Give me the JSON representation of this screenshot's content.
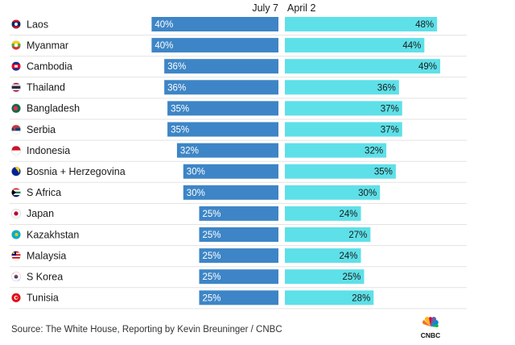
{
  "chart_data": {
    "type": "bar",
    "series": [
      {
        "name": "July 7",
        "color": "#3d85c6"
      },
      {
        "name": "April 2",
        "color": "#5ee0e8"
      }
    ],
    "rows": [
      {
        "country": "Laos",
        "flag": "laos-flag-icon",
        "july7": 40,
        "april2": 48
      },
      {
        "country": "Myanmar",
        "flag": "myanmar-flag-icon",
        "july7": 40,
        "april2": 44
      },
      {
        "country": "Cambodia",
        "flag": "cambodia-flag-icon",
        "july7": 36,
        "april2": 49
      },
      {
        "country": "Thailand",
        "flag": "thailand-flag-icon",
        "july7": 36,
        "april2": 36
      },
      {
        "country": "Bangladesh",
        "flag": "bangladesh-flag-icon",
        "july7": 35,
        "april2": 37
      },
      {
        "country": "Serbia",
        "flag": "serbia-flag-icon",
        "july7": 35,
        "april2": 37
      },
      {
        "country": "Indonesia",
        "flag": "indonesia-flag-icon",
        "july7": 32,
        "april2": 32
      },
      {
        "country": "Bosnia + Herzegovina",
        "flag": "bosnia-flag-icon",
        "july7": 30,
        "april2": 35
      },
      {
        "country": "S Africa",
        "flag": "south-africa-flag-icon",
        "july7": 30,
        "april2": 30
      },
      {
        "country": "Japan",
        "flag": "japan-flag-icon",
        "july7": 25,
        "april2": 24
      },
      {
        "country": "Kazakhstan",
        "flag": "kazakhstan-flag-icon",
        "july7": 25,
        "april2": 27
      },
      {
        "country": "Malaysia",
        "flag": "malaysia-flag-icon",
        "july7": 25,
        "april2": 24
      },
      {
        "country": "S Korea",
        "flag": "south-korea-flag-icon",
        "july7": 25,
        "april2": 25
      },
      {
        "country": "Tunisia",
        "flag": "tunisia-flag-icon",
        "july7": 25,
        "april2": 28
      }
    ],
    "value_suffix": "%"
  },
  "footer": {
    "source": "Source: The White House, Reporting by Kevin Breuninger / CNBC",
    "logo_text": "CNBC"
  }
}
